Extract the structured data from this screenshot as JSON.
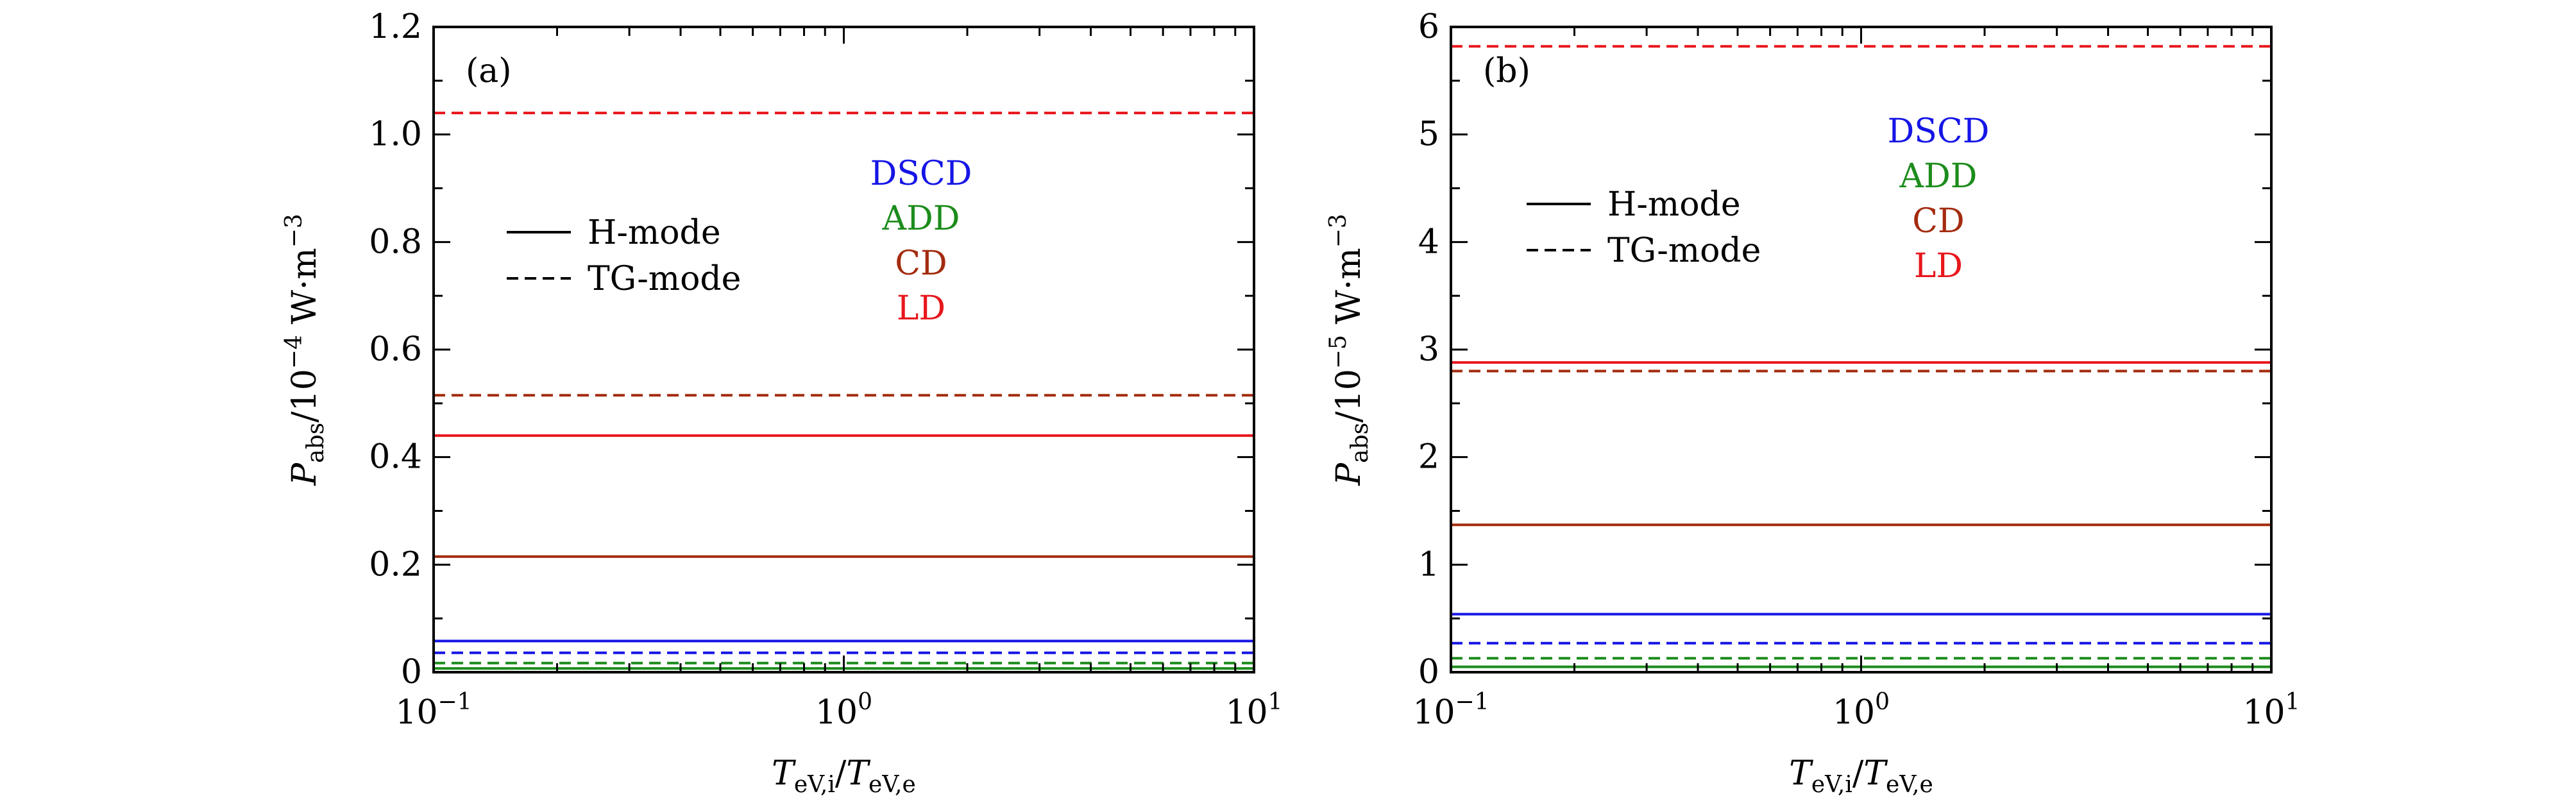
{
  "chart_data": [
    {
      "type": "line",
      "panel_label": "(a)",
      "x_scale": "log",
      "xlim": [
        0.1,
        10
      ],
      "ylim": [
        0,
        1.2
      ],
      "xlabel_main": "T",
      "xlabel_sub1": "eV,i",
      "xlabel_sep": "/",
      "xlabel_main2": "T",
      "xlabel_sub2": "eV,e",
      "ylabel_main": "P",
      "ylabel_sub": "abs",
      "ylabel_prefix": "/10",
      "ylabel_exp": "−4",
      "ylabel_unit": " W·m",
      "ylabel_unit_exp": "−3",
      "x_ticks": [
        {
          "value": 0.1,
          "base": "10",
          "exp": "−1"
        },
        {
          "value": 1,
          "base": "10",
          "exp": "0"
        },
        {
          "value": 10,
          "base": "10",
          "exp": "1"
        }
      ],
      "y_ticks": [
        {
          "value": 0,
          "label": "0"
        },
        {
          "value": 0.2,
          "label": "0.2"
        },
        {
          "value": 0.4,
          "label": "0.4"
        },
        {
          "value": 0.6,
          "label": "0.6"
        },
        {
          "value": 0.8,
          "label": "0.8"
        },
        {
          "value": 1.0,
          "label": "1.0"
        },
        {
          "value": 1.2,
          "label": "1.2"
        }
      ],
      "style_legend": [
        {
          "label": "H-mode",
          "dash": "solid"
        },
        {
          "label": "TG-mode",
          "dash": "dashed"
        }
      ],
      "color_legend": [
        {
          "label": "DSCD",
          "color": "#1515e6"
        },
        {
          "label": "ADD",
          "color": "#1c8c1c"
        },
        {
          "label": "CD",
          "color": "#a32b0e"
        },
        {
          "label": "LD",
          "color": "#e8161c"
        }
      ],
      "series": [
        {
          "model": "LD",
          "mode": "H-mode",
          "color": "#e8161c",
          "dash": "solid",
          "x": [
            0.1,
            10
          ],
          "y": [
            0.44,
            0.44
          ]
        },
        {
          "model": "LD",
          "mode": "TG-mode",
          "color": "#e8161c",
          "dash": "dashed",
          "x": [
            0.1,
            10
          ],
          "y": [
            1.04,
            1.04
          ]
        },
        {
          "model": "CD",
          "mode": "H-mode",
          "color": "#a32b0e",
          "dash": "solid",
          "x": [
            0.1,
            10
          ],
          "y": [
            0.215,
            0.215
          ]
        },
        {
          "model": "CD",
          "mode": "TG-mode",
          "color": "#a32b0e",
          "dash": "dashed",
          "x": [
            0.1,
            10
          ],
          "y": [
            0.515,
            0.515
          ]
        },
        {
          "model": "DSCD",
          "mode": "H-mode",
          "color": "#1515e6",
          "dash": "solid",
          "x": [
            0.1,
            10
          ],
          "y": [
            0.058,
            0.058
          ]
        },
        {
          "model": "DSCD",
          "mode": "TG-mode",
          "color": "#1515e6",
          "dash": "dashed",
          "x": [
            0.1,
            10
          ],
          "y": [
            0.036,
            0.036
          ]
        },
        {
          "model": "ADD",
          "mode": "H-mode",
          "color": "#1c8c1c",
          "dash": "solid",
          "x": [
            0.1,
            10
          ],
          "y": [
            0.007,
            0.007
          ]
        },
        {
          "model": "ADD",
          "mode": "TG-mode",
          "color": "#1c8c1c",
          "dash": "dashed",
          "x": [
            0.1,
            10
          ],
          "y": [
            0.017,
            0.017
          ]
        }
      ]
    },
    {
      "type": "line",
      "panel_label": "(b)",
      "x_scale": "log",
      "xlim": [
        0.1,
        10
      ],
      "ylim": [
        0,
        6
      ],
      "xlabel_main": "T",
      "xlabel_sub1": "eV,i",
      "xlabel_sep": "/",
      "xlabel_main2": "T",
      "xlabel_sub2": "eV,e",
      "ylabel_main": "P",
      "ylabel_sub": "abs",
      "ylabel_prefix": "/10",
      "ylabel_exp": "−5",
      "ylabel_unit": " W·m",
      "ylabel_unit_exp": "−3",
      "x_ticks": [
        {
          "value": 0.1,
          "base": "10",
          "exp": "−1"
        },
        {
          "value": 1,
          "base": "10",
          "exp": "0"
        },
        {
          "value": 10,
          "base": "10",
          "exp": "1"
        }
      ],
      "y_ticks": [
        {
          "value": 0,
          "label": "0"
        },
        {
          "value": 1,
          "label": "1"
        },
        {
          "value": 2,
          "label": "2"
        },
        {
          "value": 3,
          "label": "3"
        },
        {
          "value": 4,
          "label": "4"
        },
        {
          "value": 5,
          "label": "5"
        },
        {
          "value": 6,
          "label": "6"
        }
      ],
      "style_legend": [
        {
          "label": "H-mode",
          "dash": "solid"
        },
        {
          "label": "TG-mode",
          "dash": "dashed"
        }
      ],
      "color_legend": [
        {
          "label": "DSCD",
          "color": "#1515e6"
        },
        {
          "label": "ADD",
          "color": "#1c8c1c"
        },
        {
          "label": "CD",
          "color": "#a32b0e"
        },
        {
          "label": "LD",
          "color": "#e8161c"
        }
      ],
      "series": [
        {
          "model": "LD",
          "mode": "H-mode",
          "color": "#e8161c",
          "dash": "solid",
          "x": [
            0.1,
            10
          ],
          "y": [
            2.88,
            2.88
          ]
        },
        {
          "model": "LD",
          "mode": "TG-mode",
          "color": "#e8161c",
          "dash": "dashed",
          "x": [
            0.1,
            10
          ],
          "y": [
            5.82,
            5.82
          ]
        },
        {
          "model": "CD",
          "mode": "H-mode",
          "color": "#a32b0e",
          "dash": "solid",
          "x": [
            0.1,
            10
          ],
          "y": [
            1.37,
            1.37
          ]
        },
        {
          "model": "CD",
          "mode": "TG-mode",
          "color": "#a32b0e",
          "dash": "dashed",
          "x": [
            0.1,
            10
          ],
          "y": [
            2.8,
            2.8
          ]
        },
        {
          "model": "DSCD",
          "mode": "H-mode",
          "color": "#1515e6",
          "dash": "solid",
          "x": [
            0.1,
            10
          ],
          "y": [
            0.54,
            0.54
          ]
        },
        {
          "model": "DSCD",
          "mode": "TG-mode",
          "color": "#1515e6",
          "dash": "dashed",
          "x": [
            0.1,
            10
          ],
          "y": [
            0.27,
            0.27
          ]
        },
        {
          "model": "ADD",
          "mode": "H-mode",
          "color": "#1c8c1c",
          "dash": "solid",
          "x": [
            0.1,
            10
          ],
          "y": [
            0.05,
            0.05
          ]
        },
        {
          "model": "ADD",
          "mode": "TG-mode",
          "color": "#1c8c1c",
          "dash": "dashed",
          "x": [
            0.1,
            10
          ],
          "y": [
            0.13,
            0.13
          ]
        }
      ]
    }
  ]
}
